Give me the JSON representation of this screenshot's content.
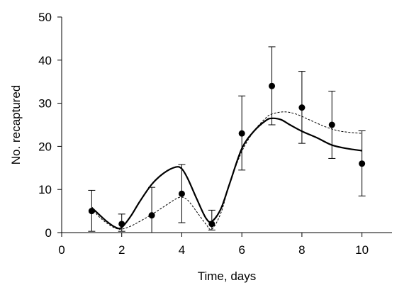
{
  "chart_data": {
    "type": "scatter",
    "xlabel": "Time, days",
    "ylabel": "No. recaptured",
    "xlim": [
      0,
      11
    ],
    "ylim": [
      0,
      50
    ],
    "x_ticks": [
      0,
      2,
      4,
      6,
      8,
      10
    ],
    "y_ticks": [
      0,
      10,
      20,
      30,
      40,
      50
    ],
    "grid": false,
    "legend": "none",
    "observed": {
      "x": [
        1,
        2,
        3,
        4,
        5,
        6,
        7,
        8,
        9,
        10
      ],
      "y": [
        5,
        2,
        4,
        9,
        2,
        23,
        34,
        29,
        25,
        16
      ],
      "error_low": [
        0.3,
        0.3,
        0,
        2.3,
        0.6,
        14.5,
        25,
        20.7,
        17.2,
        8.5
      ],
      "error_high": [
        9.8,
        4.3,
        10.5,
        15.8,
        5.2,
        31.7,
        43.1,
        37.4,
        32.8,
        23.6
      ]
    },
    "series": [
      {
        "style": "solid",
        "x": [
          1,
          1.2,
          1.5,
          1.8,
          2,
          2.3,
          2.6,
          3,
          3.4,
          3.8,
          4,
          4.2,
          4.5,
          4.8,
          5,
          5.3,
          5.6,
          6,
          6.4,
          6.8,
          7,
          7.3,
          7.6,
          8,
          8.5,
          9,
          9.5,
          10
        ],
        "y": [
          5.8,
          4.5,
          2.6,
          1.2,
          1.2,
          3.8,
          7.2,
          11.2,
          13.8,
          15.2,
          14.8,
          12.5,
          7.8,
          3.4,
          2.6,
          5.5,
          11.5,
          19.5,
          23.5,
          26.0,
          26.5,
          26.2,
          25.0,
          23.5,
          22.0,
          20.3,
          19.5,
          19.0
        ]
      },
      {
        "style": "dashed",
        "x": [
          1,
          1.2,
          1.5,
          1.8,
          2,
          2.3,
          2.6,
          3,
          3.4,
          3.8,
          4,
          4.2,
          4.5,
          4.8,
          5,
          5.3,
          5.6,
          6,
          6.4,
          6.8,
          7,
          7.4,
          7.8,
          8.3,
          8.8,
          9.3,
          10
        ],
        "y": [
          5.8,
          4.0,
          2.2,
          1.0,
          0.8,
          1.5,
          2.6,
          4.2,
          6.0,
          7.8,
          8.2,
          7.5,
          4.8,
          2.0,
          0.8,
          4.5,
          11.5,
          18.8,
          23.5,
          26.6,
          27.5,
          28.0,
          27.5,
          26.0,
          24.5,
          23.5,
          23.0
        ]
      }
    ]
  }
}
